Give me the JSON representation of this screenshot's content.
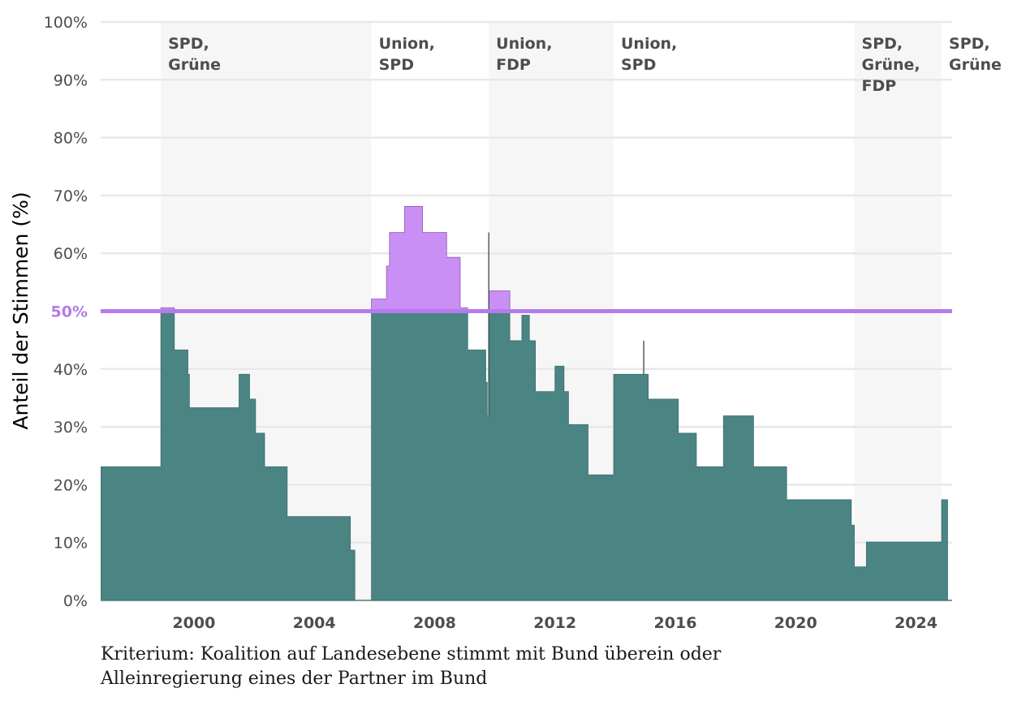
{
  "chart_data": {
    "type": "area",
    "ylabel": "Anteil der Stimmen (%)",
    "xlabel": "",
    "xlim": [
      1996.9,
      2025.2
    ],
    "ylim": [
      0,
      100
    ],
    "x_ticks": [
      {
        "value": 2000,
        "label": "2000"
      },
      {
        "value": 2004,
        "label": "2004"
      },
      {
        "value": 2008,
        "label": "2008"
      },
      {
        "value": 2012,
        "label": "2012"
      },
      {
        "value": 2016,
        "label": "2016"
      },
      {
        "value": 2020,
        "label": "2020"
      },
      {
        "value": 2024,
        "label": "2024"
      }
    ],
    "y_ticks": [
      {
        "value": 0,
        "label": "0%"
      },
      {
        "value": 10,
        "label": "10%"
      },
      {
        "value": 20,
        "label": "20%"
      },
      {
        "value": 30,
        "label": "30%"
      },
      {
        "value": 40,
        "label": "40%"
      },
      {
        "value": 50,
        "label": "50%"
      },
      {
        "value": 60,
        "label": "60%"
      },
      {
        "value": 70,
        "label": "70%"
      },
      {
        "value": 80,
        "label": "80%"
      },
      {
        "value": 90,
        "label": "90%"
      },
      {
        "value": 100,
        "label": "100%"
      }
    ],
    "grid": true,
    "threshold": {
      "value": 50,
      "label": "50%",
      "color": "#b57bee"
    },
    "colors": {
      "area": "#4a8483",
      "above_threshold": "#c98ff4",
      "period_band": "#f6f6f6",
      "grid": "#e8e8e8"
    },
    "periods": [
      {
        "start": 1998.9,
        "end": 2005.9,
        "label_lines": [
          "SPD,",
          "Grüne"
        ],
        "shaded": true
      },
      {
        "start": 2005.9,
        "end": 2009.8,
        "label_lines": [
          "Union,",
          "SPD"
        ],
        "shaded": false
      },
      {
        "start": 2009.8,
        "end": 2013.95,
        "label_lines": [
          "Union,",
          "FDP"
        ],
        "shaded": true
      },
      {
        "start": 2013.95,
        "end": 2021.95,
        "label_lines": [
          "Union,",
          "SPD"
        ],
        "shaded": false
      },
      {
        "start": 2021.95,
        "end": 2024.85,
        "label_lines": [
          "SPD,",
          "Grüne,",
          "FDP"
        ],
        "shaded": true
      },
      {
        "start": 2024.85,
        "end": 2025.2,
        "label_lines": [
          "SPD,",
          "Grüne"
        ],
        "shaded": false
      }
    ],
    "series": [
      {
        "type": "step",
        "points": [
          [
            1996.9,
            23.1
          ],
          [
            1998.9,
            50.6
          ],
          [
            1999.35,
            43.3
          ],
          [
            1999.8,
            39.1
          ],
          [
            1999.85,
            33.3
          ],
          [
            2001.5,
            39.1
          ],
          [
            2001.85,
            34.8
          ],
          [
            2002.05,
            28.9
          ],
          [
            2002.35,
            23.1
          ],
          [
            2003.1,
            14.5
          ],
          [
            2005.2,
            8.7
          ],
          [
            2005.35,
            0
          ],
          [
            2005.75,
            0
          ],
          [
            2005.9,
            52.1
          ],
          [
            2006.4,
            57.8
          ],
          [
            2006.5,
            63.6
          ],
          [
            2007.0,
            68.1
          ],
          [
            2007.6,
            63.6
          ],
          [
            2008.4,
            59.3
          ],
          [
            2008.85,
            50.6
          ],
          [
            2009.1,
            43.3
          ],
          [
            2009.7,
            37.7
          ],
          [
            2009.75,
            31.9
          ],
          [
            2009.8,
            53.5
          ],
          [
            2010.5,
            44.9
          ],
          [
            2010.9,
            49.3
          ],
          [
            2011.15,
            44.9
          ],
          [
            2011.35,
            36.1
          ],
          [
            2012.0,
            40.5
          ],
          [
            2012.3,
            36.1
          ],
          [
            2012.45,
            30.4
          ],
          [
            2013.1,
            21.7
          ],
          [
            2013.95,
            39.1
          ],
          [
            2015.1,
            34.8
          ],
          [
            2016.1,
            28.9
          ],
          [
            2016.7,
            23.1
          ],
          [
            2017.6,
            31.9
          ],
          [
            2018.6,
            23.1
          ],
          [
            2019.7,
            17.4
          ],
          [
            2021.5,
            17.4
          ],
          [
            2021.85,
            13.0
          ],
          [
            2021.95,
            5.8
          ],
          [
            2022.35,
            10.1
          ],
          [
            2024.85,
            17.4
          ],
          [
            2025.05,
            17.4
          ]
        ]
      }
    ],
    "spikes": [
      {
        "x": 2009.8,
        "from": 31.9,
        "to": 63.6
      },
      {
        "x": 2014.95,
        "from": 39.1,
        "to": 44.9
      }
    ]
  },
  "caption": {
    "line1": "Kriterium: Koalition auf Landesebene stimmt mit Bund überein oder",
    "line2": "Alleinregierung eines der Partner im Bund"
  }
}
